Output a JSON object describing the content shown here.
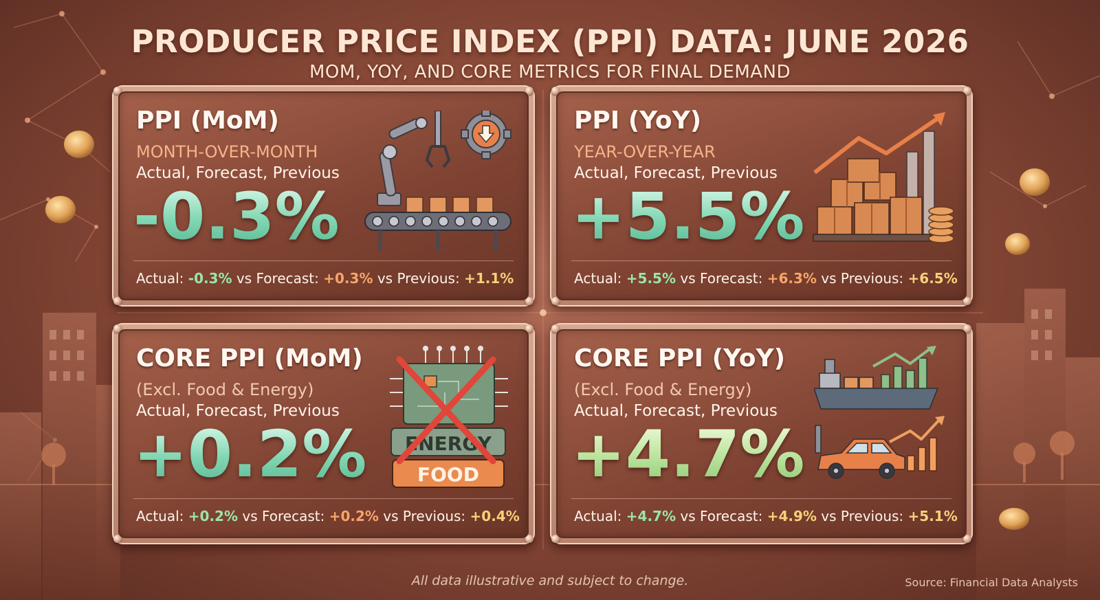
{
  "header": {
    "title": "PRODUCER PRICE INDEX (PPI) DATA: JUNE 2026",
    "subtitle": "MOM, YOY, AND CORE METRICS FOR FINAL DEMAND"
  },
  "labels": {
    "actual": "Actual:",
    "vs_forecast": "vs Forecast:",
    "vs_previous": "vs Previous:"
  },
  "cards": [
    {
      "title": "PPI (MoM)",
      "subtitle": "MONTH-OVER-MONTH",
      "meta": "Actual, Forecast, Previous",
      "value": "-0.3%",
      "actual": "-0.3%",
      "forecast": "+0.3%",
      "previous": "+1.1%",
      "icon": "factory-conveyor-icon"
    },
    {
      "title": "PPI (YoY)",
      "subtitle": "YEAR-OVER-YEAR",
      "meta": "Actual, Forecast, Previous",
      "value": "+5.5%",
      "actual": "+5.5%",
      "forecast": "+6.3%",
      "previous": "+6.5%",
      "icon": "boxes-growth-icon"
    },
    {
      "title": "CORE PPI (MoM)",
      "subtitle": "(Excl. Food & Energy)",
      "meta": "Actual, Forecast, Previous",
      "value": "+0.2%",
      "actual": "+0.2%",
      "forecast": "+0.2%",
      "previous": "+0.4%",
      "icon": "excluded-energy-food-icon",
      "icon_labels": {
        "energy": "ENERGY",
        "food": "FOOD"
      }
    },
    {
      "title": "CORE PPI (YoY)",
      "subtitle": "(Excl. Food & Energy)",
      "meta": "Actual, Forecast, Previous",
      "value": "+4.7%",
      "actual": "+4.7%",
      "forecast": "+4.9%",
      "previous": "+5.1%",
      "icon": "ship-car-growth-icon"
    }
  ],
  "footer": {
    "note": "All data illustrative and subject to change.",
    "source": "Source: Financial Data Analysts"
  },
  "colors": {
    "value_green": "#9ae6a8",
    "value_orange": "#f7a56a",
    "value_yellow": "#f8d27a",
    "accent_copper": "#e2884f"
  }
}
